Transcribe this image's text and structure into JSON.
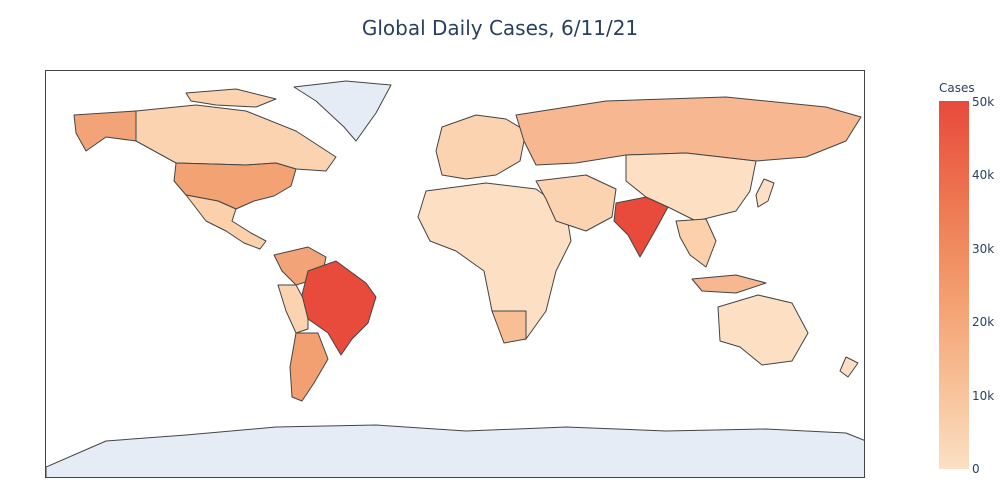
{
  "title": "Global Daily Cases, 6/11/21",
  "colorbar": {
    "title": "Cases",
    "ticks": [
      "50k",
      "40k",
      "30k",
      "20k",
      "10k",
      "0"
    ],
    "colors": {
      "high": "#e84a3c",
      "mid": "#f4a172",
      "low": "#fbe0c4"
    }
  },
  "map": {
    "projection": "equirectangular",
    "no_data_color": "#e5ecf6",
    "border_color": "#444444",
    "shaded_regions": [
      {
        "name": "India",
        "level": "very high"
      },
      {
        "name": "Brazil",
        "level": "very high"
      },
      {
        "name": "Argentina",
        "level": "high"
      },
      {
        "name": "Colombia",
        "level": "high"
      },
      {
        "name": "United States",
        "level": "moderate"
      },
      {
        "name": "Russia",
        "level": "moderate"
      },
      {
        "name": "Alaska",
        "level": "moderate"
      },
      {
        "name": "Canada",
        "level": "low"
      },
      {
        "name": "Africa",
        "level": "low"
      },
      {
        "name": "China",
        "level": "low"
      },
      {
        "name": "Australia",
        "level": "low"
      },
      {
        "name": "Greenland",
        "level": "no data"
      },
      {
        "name": "Antarctica",
        "level": "no data"
      }
    ]
  }
}
